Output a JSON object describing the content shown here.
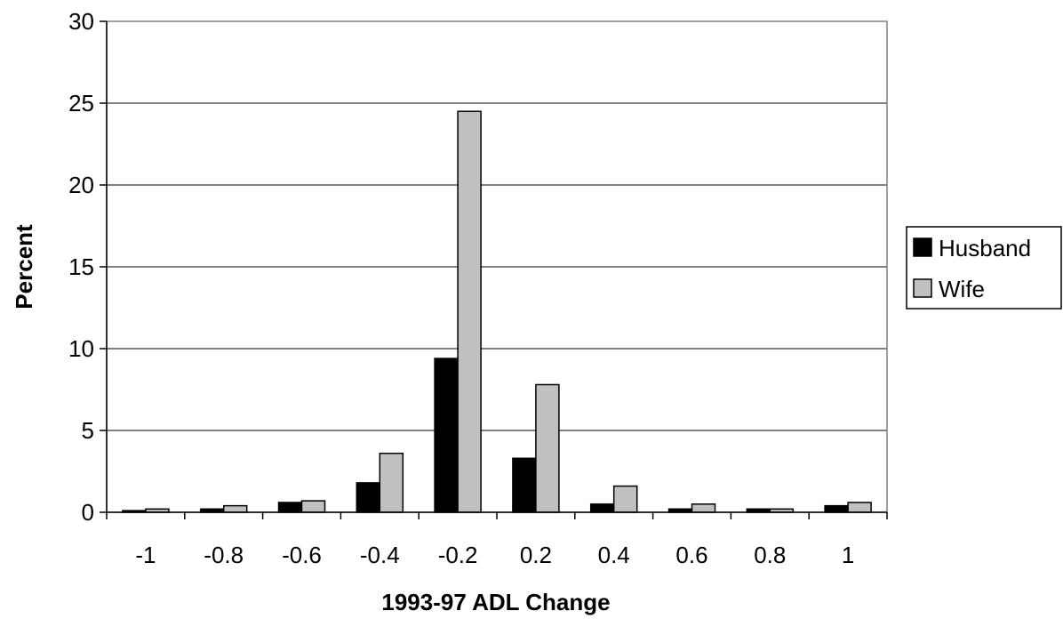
{
  "chart_data": {
    "type": "bar",
    "title": "",
    "xlabel": "1993-97 ADL Change",
    "ylabel": "Percent",
    "categories": [
      "-1",
      "-0.8",
      "-0.6",
      "-0.4",
      "-0.2",
      "0.2",
      "0.4",
      "0.6",
      "0.8",
      "1"
    ],
    "series": [
      {
        "name": "Husband",
        "color": "#000000",
        "values": [
          0.1,
          0.2,
          0.6,
          1.8,
          9.4,
          3.3,
          0.5,
          0.2,
          0.2,
          0.4
        ]
      },
      {
        "name": "Wife",
        "color": "#c0c0c0",
        "values": [
          0.2,
          0.4,
          0.7,
          3.6,
          24.5,
          7.8,
          1.6,
          0.5,
          0.2,
          0.6
        ]
      }
    ],
    "ylim": [
      0,
      30
    ],
    "yticks": [
      "0",
      "5",
      "10",
      "15",
      "20",
      "25",
      "30"
    ],
    "grid": true,
    "legend_position": "right"
  }
}
